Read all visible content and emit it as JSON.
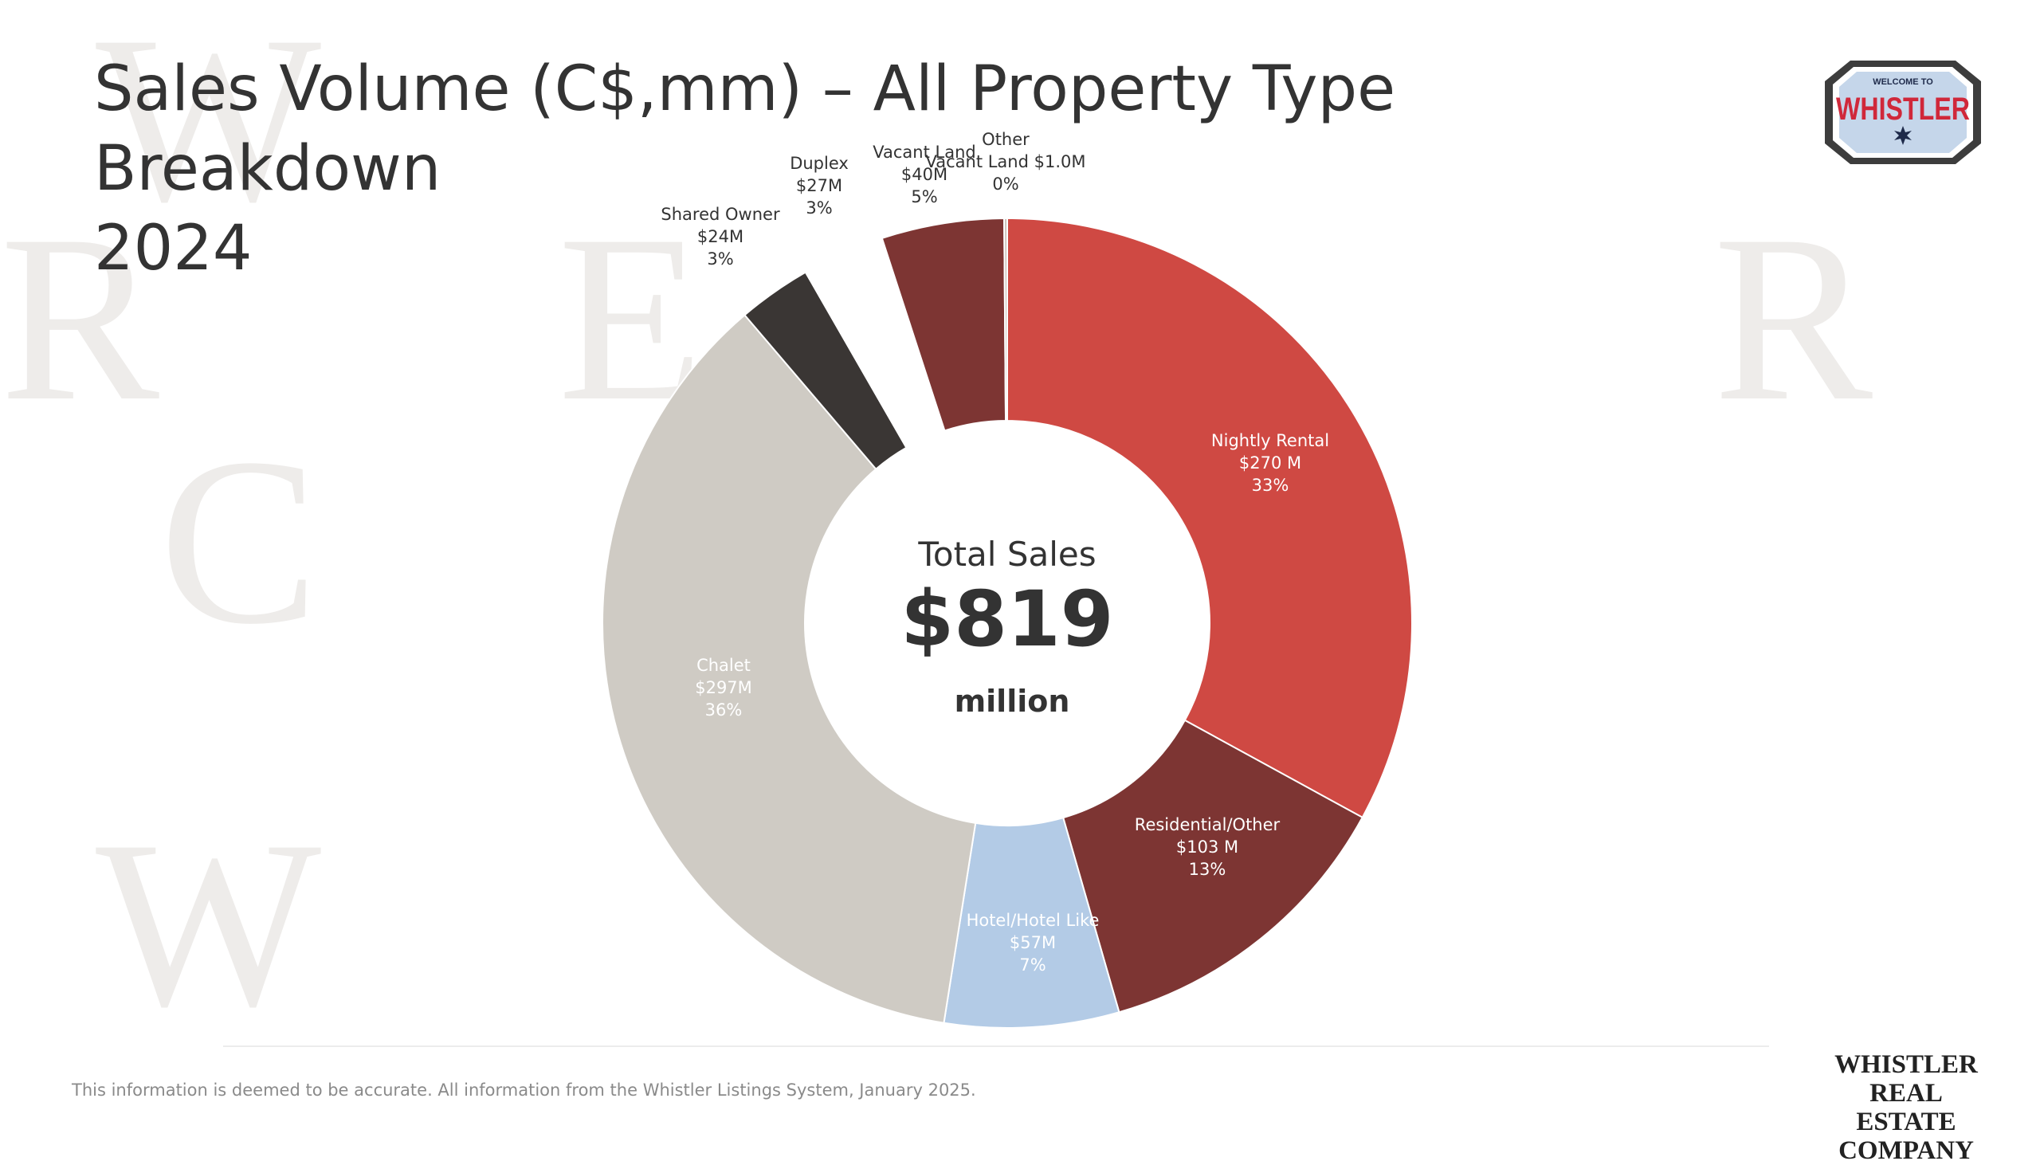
{
  "title": {
    "line1": "Sales Volume (C$,mm) – All Property Type Breakdown",
    "line2": "2024"
  },
  "logo": {
    "top_text": "WELCOME TO",
    "main_text": "WHISTLER",
    "icon": "snowflake-icon"
  },
  "brand": {
    "line1": "WHISTLER",
    "line2": "REAL ESTATE",
    "line3": "COMPANY"
  },
  "footnote": "This information is deemed to be accurate. All information from the Whistler Listings System, January 2025.",
  "watermark_letters": [
    "W",
    "R",
    "E",
    "C",
    "W",
    "R"
  ],
  "chart_data": {
    "type": "pie",
    "variant": "donut",
    "center": {
      "title": "Total Sales",
      "value": "$819",
      "unit": "million"
    },
    "slices": [
      {
        "name": "Nightly Rental",
        "value": 270,
        "value_label": "$270 M",
        "pct_label": "33%",
        "color": "#cf4943",
        "label_color": "#ffffff",
        "label_lines": [
          "Nightly Rental",
          "$270 M",
          "33%"
        ]
      },
      {
        "name": "Residential/Other",
        "value": 103,
        "value_label": "$103 M",
        "pct_label": "13%",
        "color": "#7d3533",
        "label_color": "#ffffff",
        "label_lines": [
          "Residential/Other",
          "$103 M",
          "13%"
        ]
      },
      {
        "name": "Hotel/Hotel Like",
        "value": 57,
        "value_label": "$57M",
        "pct_label": "7%",
        "color": "#b3cbe6",
        "label_color": "#ffffff",
        "label_lines": [
          "Hotel/Hotel Like",
          "$57M",
          "7%"
        ]
      },
      {
        "name": "Chalet",
        "value": 297,
        "value_label": "$297M",
        "pct_label": "36%",
        "color": "#cfcbc4",
        "label_color": "#ffffff",
        "label_lines": [
          "Chalet",
          "$297M",
          "36%"
        ]
      },
      {
        "name": "Shared Owner",
        "value": 24,
        "value_label": "$24M",
        "pct_label": "3%",
        "color": "#3a3634",
        "label_color": "#333333",
        "label_lines": [
          "Shared Owner",
          "$24M",
          "3%"
        ]
      },
      {
        "name": "Duplex",
        "value": 27,
        "value_label": "$27M",
        "pct_label": "3%",
        "color": "#ffffff",
        "label_color": "#333333",
        "label_lines": [
          "Duplex",
          "$27M",
          "3%"
        ]
      },
      {
        "name": "Vacant Land",
        "value": 40,
        "value_label": "$40M",
        "pct_label": "5%",
        "color": "#7d3533",
        "label_color": "#333333",
        "label_lines": [
          "Vacant Land",
          "$40M",
          "5%"
        ]
      },
      {
        "name": "Other",
        "value": 1.0,
        "value_label": "$1.0M",
        "pct_label": "0%",
        "color": "#c8c0b8",
        "label_color": "#333333",
        "label_lines": [
          "Other",
          "Vacant Land $1.0M",
          "0%"
        ]
      }
    ]
  }
}
